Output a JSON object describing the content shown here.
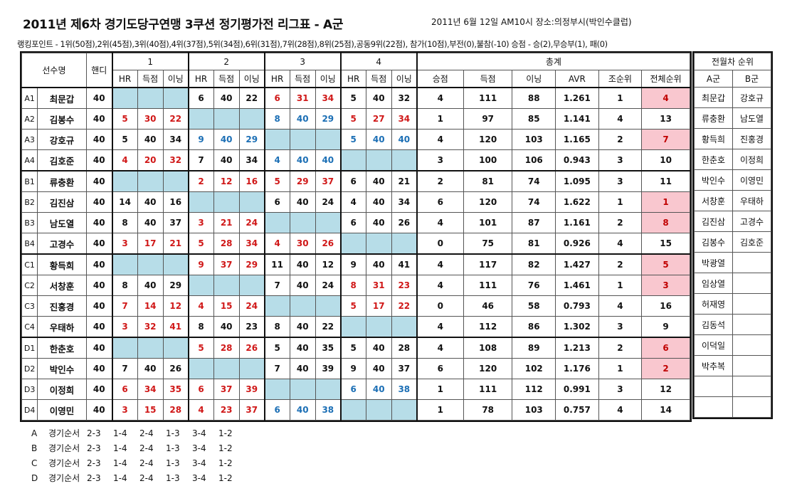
{
  "title": "2011년 제6차 경기도당구연맹 3쿠션 정기평가전 리그표 - A군",
  "meta": "2011년 6월 12일 AM10시  장소:의정부시(박인수클럽)",
  "points_note": "랭킹포인트 - 1위(50점),2위(45점),3위(40점),4위(37점),5위(34점),6위(31점),7위(28점),8위(25점),공동9위(22점), 참가(10점),부전(0),불참(-10)  승점 - 승(2),무승부(1), 패(0)",
  "headers": {
    "player": "선수명",
    "handicap": "핸디",
    "groups": [
      "1",
      "2",
      "3",
      "4"
    ],
    "total": "총계",
    "hr": "HR",
    "score": "득점",
    "inning": "이닝",
    "win_points": "승점",
    "avr": "AVR",
    "group_rank": "조순위",
    "overall_rank": "전체순위"
  },
  "rows": [
    {
      "id": "A1",
      "name": "최문갑",
      "handi": "40",
      "g": [
        null,
        [
          "6",
          "40",
          "22",
          "n"
        ],
        [
          "6",
          "31",
          "34",
          "r"
        ],
        [
          "5",
          "40",
          "32",
          "n"
        ]
      ],
      "t": [
        "4",
        "111",
        "88",
        "1.261",
        "1",
        "4"
      ],
      "hl": true
    },
    {
      "id": "A2",
      "name": "김봉수",
      "handi": "40",
      "g": [
        [
          "5",
          "30",
          "22",
          "r"
        ],
        null,
        [
          "8",
          "40",
          "29",
          "b"
        ],
        [
          "5",
          "27",
          "34",
          "r"
        ]
      ],
      "t": [
        "1",
        "97",
        "85",
        "1.141",
        "4",
        "13"
      ],
      "hl": false
    },
    {
      "id": "A3",
      "name": "강호규",
      "handi": "40",
      "g": [
        [
          "5",
          "40",
          "34",
          "n"
        ],
        [
          "9",
          "40",
          "29",
          "b"
        ],
        null,
        [
          "5",
          "40",
          "40",
          "b"
        ]
      ],
      "t": [
        "4",
        "120",
        "103",
        "1.165",
        "2",
        "7"
      ],
      "hl": true
    },
    {
      "id": "A4",
      "name": "김호준",
      "handi": "40",
      "g": [
        [
          "4",
          "20",
          "32",
          "r"
        ],
        [
          "7",
          "40",
          "34",
          "n"
        ],
        [
          "4",
          "40",
          "40",
          "b"
        ],
        null
      ],
      "t": [
        "3",
        "100",
        "106",
        "0.943",
        "3",
        "10"
      ],
      "hl": false
    },
    {
      "id": "B1",
      "name": "류충환",
      "handi": "40",
      "g": [
        null,
        [
          "2",
          "12",
          "16",
          "r"
        ],
        [
          "5",
          "29",
          "37",
          "r"
        ],
        [
          "6",
          "40",
          "21",
          "n"
        ]
      ],
      "t": [
        "2",
        "81",
        "74",
        "1.095",
        "3",
        "11"
      ],
      "hl": false
    },
    {
      "id": "B2",
      "name": "김진삼",
      "handi": "40",
      "g": [
        [
          "14",
          "40",
          "16",
          "n"
        ],
        null,
        [
          "6",
          "40",
          "24",
          "n"
        ],
        [
          "4",
          "40",
          "34",
          "n"
        ]
      ],
      "t": [
        "6",
        "120",
        "74",
        "1.622",
        "1",
        "1"
      ],
      "hl": true
    },
    {
      "id": "B3",
      "name": "남도열",
      "handi": "40",
      "g": [
        [
          "8",
          "40",
          "37",
          "n"
        ],
        [
          "3",
          "21",
          "24",
          "r"
        ],
        null,
        [
          "6",
          "40",
          "26",
          "n"
        ]
      ],
      "t": [
        "4",
        "101",
        "87",
        "1.161",
        "2",
        "8"
      ],
      "hl": true
    },
    {
      "id": "B4",
      "name": "고경수",
      "handi": "40",
      "g": [
        [
          "3",
          "17",
          "21",
          "r"
        ],
        [
          "5",
          "28",
          "34",
          "r"
        ],
        [
          "4",
          "30",
          "26",
          "r"
        ],
        null
      ],
      "t": [
        "0",
        "75",
        "81",
        "0.926",
        "4",
        "15"
      ],
      "hl": false
    },
    {
      "id": "C1",
      "name": "황득희",
      "handi": "40",
      "g": [
        null,
        [
          "9",
          "37",
          "29",
          "r"
        ],
        [
          "11",
          "40",
          "12",
          "n"
        ],
        [
          "9",
          "40",
          "41",
          "n"
        ]
      ],
      "t": [
        "4",
        "117",
        "82",
        "1.427",
        "2",
        "5"
      ],
      "hl": true
    },
    {
      "id": "C2",
      "name": "서창훈",
      "handi": "40",
      "g": [
        [
          "8",
          "40",
          "29",
          "n"
        ],
        null,
        [
          "7",
          "40",
          "24",
          "n"
        ],
        [
          "8",
          "31",
          "23",
          "r"
        ]
      ],
      "t": [
        "4",
        "111",
        "76",
        "1.461",
        "1",
        "3"
      ],
      "hl": true
    },
    {
      "id": "C3",
      "name": "진홍경",
      "handi": "40",
      "g": [
        [
          "7",
          "14",
          "12",
          "r"
        ],
        [
          "4",
          "15",
          "24",
          "r"
        ],
        null,
        [
          "5",
          "17",
          "22",
          "r"
        ]
      ],
      "t": [
        "0",
        "46",
        "58",
        "0.793",
        "4",
        "16"
      ],
      "hl": false
    },
    {
      "id": "C4",
      "name": "우태하",
      "handi": "40",
      "g": [
        [
          "3",
          "32",
          "41",
          "r"
        ],
        [
          "8",
          "40",
          "23",
          "n"
        ],
        [
          "8",
          "40",
          "22",
          "n"
        ],
        null
      ],
      "t": [
        "4",
        "112",
        "86",
        "1.302",
        "3",
        "9"
      ],
      "hl": false
    },
    {
      "id": "D1",
      "name": "한춘호",
      "handi": "40",
      "g": [
        null,
        [
          "5",
          "28",
          "26",
          "r"
        ],
        [
          "5",
          "40",
          "35",
          "n"
        ],
        [
          "5",
          "40",
          "28",
          "n"
        ]
      ],
      "t": [
        "4",
        "108",
        "89",
        "1.213",
        "2",
        "6"
      ],
      "hl": true
    },
    {
      "id": "D2",
      "name": "박인수",
      "handi": "40",
      "g": [
        [
          "7",
          "40",
          "26",
          "n"
        ],
        null,
        [
          "7",
          "40",
          "39",
          "n"
        ],
        [
          "9",
          "40",
          "37",
          "n"
        ]
      ],
      "t": [
        "6",
        "120",
        "102",
        "1.176",
        "1",
        "2"
      ],
      "hl": true
    },
    {
      "id": "D3",
      "name": "이정희",
      "handi": "40",
      "g": [
        [
          "6",
          "34",
          "35",
          "r"
        ],
        [
          "6",
          "37",
          "39",
          "r"
        ],
        null,
        [
          "6",
          "40",
          "38",
          "b"
        ]
      ],
      "t": [
        "1",
        "111",
        "112",
        "0.991",
        "3",
        "12"
      ],
      "hl": false
    },
    {
      "id": "D4",
      "name": "이영민",
      "handi": "40",
      "g": [
        [
          "3",
          "15",
          "28",
          "r"
        ],
        [
          "4",
          "23",
          "37",
          "r"
        ],
        [
          "6",
          "40",
          "38",
          "b"
        ],
        null
      ],
      "t": [
        "1",
        "78",
        "103",
        "0.757",
        "4",
        "14"
      ],
      "hl": false
    }
  ],
  "side": {
    "title": "전월차 순위",
    "col_a": "A군",
    "col_b": "B군",
    "a": [
      "최문갑",
      "류충환",
      "황득희",
      "한춘호",
      "박인수",
      "서창훈",
      "김진삼",
      "김봉수",
      "박광열",
      "임상열",
      "허재영",
      "김동석",
      "이덕일",
      "박추복",
      "",
      ""
    ],
    "b": [
      "강호규",
      "남도열",
      "진홍경",
      "이정희",
      "이영민",
      "우태하",
      "고경수",
      "김호준",
      "",
      "",
      "",
      "",
      "",
      "",
      "",
      ""
    ]
  },
  "order": [
    {
      "group": "A",
      "label": "경기순서",
      "matches": [
        "2-3",
        "1-4",
        "2-4",
        "1-3",
        "3-4",
        "1-2"
      ]
    },
    {
      "group": "B",
      "label": "경기순서",
      "matches": [
        "2-3",
        "1-4",
        "2-4",
        "1-3",
        "3-4",
        "1-2"
      ]
    },
    {
      "group": "C",
      "label": "경기순서",
      "matches": [
        "2-3",
        "1-4",
        "2-4",
        "1-3",
        "3-4",
        "1-2"
      ]
    },
    {
      "group": "D",
      "label": "경기순서",
      "matches": [
        "2-3",
        "1-4",
        "2-4",
        "1-3",
        "3-4",
        "1-2"
      ]
    }
  ],
  "colors": {
    "blank": "#b7dde8",
    "highlight": "#f9c7cf",
    "red": "#d01818",
    "blue": "#1c6fb5"
  }
}
